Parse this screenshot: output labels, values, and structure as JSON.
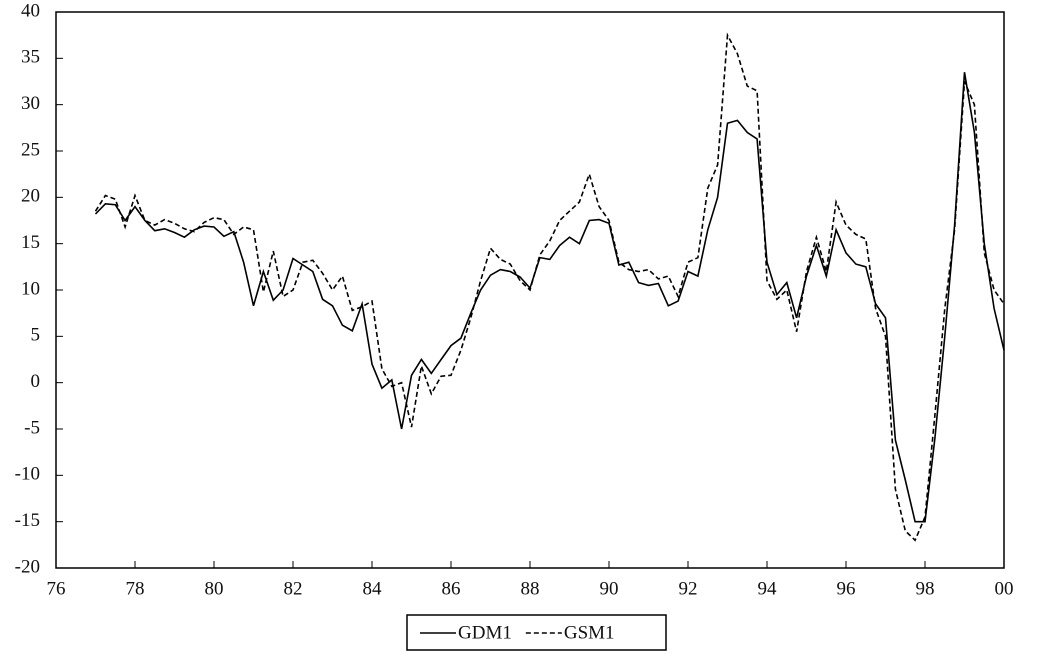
{
  "chart_data": {
    "type": "line",
    "x": [
      77,
      77.25,
      77.5,
      77.75,
      78,
      78.25,
      78.5,
      78.75,
      79,
      79.25,
      79.5,
      79.75,
      80,
      80.25,
      80.5,
      80.75,
      81,
      81.25,
      81.5,
      81.75,
      82,
      82.25,
      82.5,
      82.75,
      83,
      83.25,
      83.5,
      83.75,
      84,
      84.25,
      84.5,
      84.75,
      85,
      85.25,
      85.5,
      85.75,
      86,
      86.25,
      86.5,
      86.75,
      87,
      87.25,
      87.5,
      87.75,
      88,
      88.25,
      88.5,
      88.75,
      89,
      89.25,
      89.5,
      89.75,
      90,
      90.25,
      90.5,
      90.75,
      91,
      91.25,
      91.5,
      91.75,
      92,
      92.25,
      92.5,
      92.75,
      93,
      93.25,
      93.5,
      93.75,
      94,
      94.25,
      94.5,
      94.75,
      95,
      95.25,
      95.5,
      95.75,
      96,
      96.25,
      96.5,
      96.75,
      97,
      97.25,
      97.5,
      97.75,
      98,
      98.25,
      98.5,
      98.75,
      99,
      99.25,
      99.5,
      99.75,
      100
    ],
    "series": [
      {
        "name": "GDM1",
        "color": "#000000",
        "style": "solid",
        "values": [
          18.2,
          19.3,
          19.2,
          17.5,
          19.0,
          17.5,
          16.4,
          16.6,
          16.2,
          15.7,
          16.5,
          16.9,
          16.8,
          15.8,
          16.3,
          13,
          8.3,
          12.0,
          8.9,
          10,
          13.4,
          12.7,
          12.0,
          9.0,
          8.3,
          6.2,
          5.6,
          8.5,
          2.0,
          -0.6,
          0.3,
          -5.0,
          0.8,
          2.5,
          1.0,
          2.5,
          4.0,
          4.8,
          7.5,
          10,
          11.6,
          12.2,
          12.0,
          11.4,
          10.2,
          13.5,
          13.3,
          14.8,
          15.7,
          15.0,
          17.5,
          17.6,
          17.2,
          12.7,
          13.0,
          10.8,
          10.5,
          10.7,
          8.3,
          8.8,
          12.0,
          11.5,
          16.5,
          20.0,
          28.0,
          28.3,
          27.0,
          26.3,
          13.0,
          9.5,
          10.8,
          7.0,
          11.5,
          14.8,
          11.5,
          16.5,
          14.0,
          12.8,
          12.5,
          8.5,
          7.0,
          -6.2,
          -10.5,
          -15.0,
          -15.0,
          -6.0,
          5.0,
          17.0,
          33.5,
          27,
          15,
          8,
          3.5
        ]
      },
      {
        "name": "GSM1",
        "color": "#000000",
        "style": "dashed",
        "values": [
          18.5,
          20.2,
          19.8,
          16.8,
          20.2,
          17.5,
          17.0,
          17.6,
          17.2,
          16.6,
          16.3,
          17.3,
          17.8,
          17.6,
          16.0,
          16.8,
          16.5,
          9.8,
          14.2,
          9.3,
          10.0,
          13.0,
          13.2,
          11.8,
          10.0,
          11.5,
          7.8,
          8.2,
          8.8,
          1.5,
          -0.4,
          0.0,
          -4.8,
          1.8,
          -1.2,
          0.7,
          0.8,
          3.5,
          7.0,
          11.0,
          14.5,
          13.3,
          12.8,
          11.0,
          10.0,
          13.8,
          15.3,
          17.5,
          18.5,
          19.5,
          22.5,
          19.0,
          17.5,
          13.0,
          12.2,
          12.0,
          12.2,
          11.2,
          11.5,
          9.3,
          13.0,
          13.5,
          21.0,
          23.5,
          37.5,
          35.5,
          32.0,
          31.5,
          11.0,
          9.0,
          10.0,
          5.5,
          12.0,
          15.7,
          12.0,
          19.5,
          17.0,
          16.0,
          15.5,
          8.0,
          5.0,
          -11.5,
          -16.0,
          -17.0,
          -14.5,
          -3.5,
          8.0,
          16.5,
          32.5,
          30.0,
          14.0,
          10.0,
          8.5
        ]
      }
    ],
    "xlim": [
      76,
      100
    ],
    "xticks": [
      76,
      78,
      80,
      82,
      84,
      86,
      88,
      90,
      92,
      94,
      96,
      98,
      {
        "value": 100,
        "label": "00"
      }
    ],
    "ylim": [
      -20,
      40
    ],
    "yticks": [
      -20,
      -15,
      -10,
      -5,
      0,
      5,
      10,
      15,
      20,
      25,
      30,
      35,
      40
    ],
    "grid": false,
    "legend": "bottom"
  }
}
